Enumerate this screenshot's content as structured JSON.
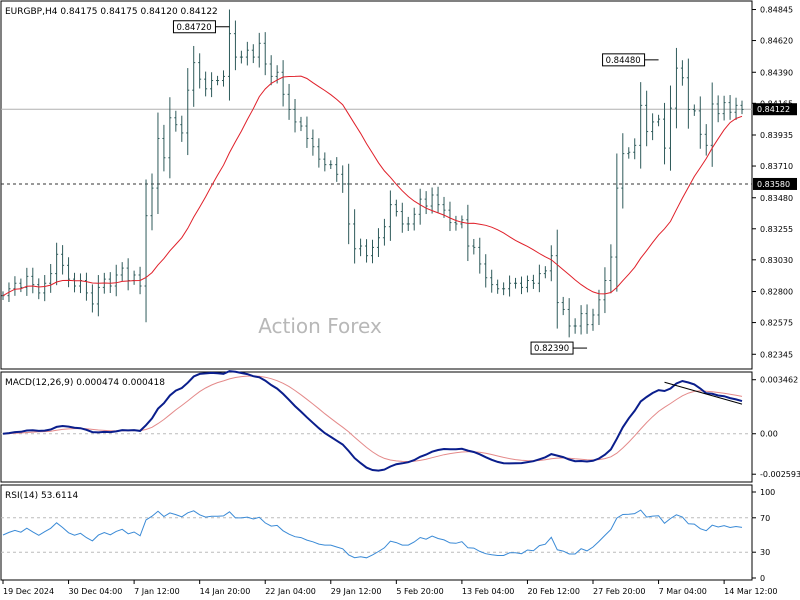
{
  "chart_data": {
    "type": "line",
    "symbol_header": "EURGBP,H4  0.84175 0.84175 0.84120 0.84122",
    "watermark": "Action Forex",
    "colors": {
      "bars": "#2e5a5a",
      "sma": "#e0202a",
      "macd": "#0a1e8c",
      "signal": "#e48a8a",
      "rsi": "#3a8ad6",
      "trendline": "#000000",
      "frame": "#000000"
    },
    "price_panel": {
      "ylim": [
        0.8226,
        0.84885
      ],
      "y_ticks": [
        "0.84845",
        "0.84620",
        "0.84390",
        "0.84165",
        "0.83935",
        "0.83710",
        "0.83480",
        "0.83255",
        "0.83030",
        "0.82800",
        "0.82575",
        "0.82345"
      ],
      "current_price_label": "0.84122",
      "current_price": 0.84122,
      "horizontal_level_label": "0.83580",
      "horizontal_level": 0.8358,
      "annotations": [
        {
          "text": "0.84720",
          "x": 38,
          "y": 0.8472
        },
        {
          "text": "0.84480",
          "x": 110,
          "y": 0.8448
        },
        {
          "text": "0.82390",
          "x": 98,
          "y": 0.8239
        }
      ],
      "close": [
        0.8277,
        0.8282,
        0.8286,
        0.8283,
        0.8291,
        0.8285,
        0.8279,
        0.8286,
        0.8293,
        0.8307,
        0.8299,
        0.8289,
        0.8284,
        0.8288,
        0.8279,
        0.8271,
        0.8283,
        0.8289,
        0.8284,
        0.8292,
        0.8297,
        0.8288,
        0.8292,
        0.8284,
        0.8335,
        0.8355,
        0.8391,
        0.8377,
        0.8406,
        0.8401,
        0.8395,
        0.8426,
        0.8446,
        0.8434,
        0.8427,
        0.8433,
        0.8433,
        0.8436,
        0.8467,
        0.845,
        0.845,
        0.8455,
        0.845,
        0.846,
        0.8445,
        0.8436,
        0.8439,
        0.8423,
        0.8412,
        0.8403,
        0.84,
        0.8391,
        0.8385,
        0.8376,
        0.8372,
        0.8372,
        0.8365,
        0.8358,
        0.8329,
        0.8311,
        0.8313,
        0.8306,
        0.8312,
        0.8319,
        0.8327,
        0.8343,
        0.8338,
        0.8329,
        0.8329,
        0.8336,
        0.8347,
        0.8342,
        0.835,
        0.8343,
        0.8339,
        0.833,
        0.8329,
        0.8332,
        0.8313,
        0.8312,
        0.83,
        0.829,
        0.8285,
        0.8282,
        0.8282,
        0.8286,
        0.8286,
        0.8283,
        0.8288,
        0.8286,
        0.8293,
        0.8295,
        0.8306,
        0.8272,
        0.8267,
        0.8255,
        0.8255,
        0.8264,
        0.8256,
        0.8263,
        0.8274,
        0.8288,
        0.8305,
        0.8355,
        0.838,
        0.8381,
        0.8386,
        0.8415,
        0.8396,
        0.8403,
        0.8405,
        0.8384,
        0.8413,
        0.8442,
        0.8435,
        0.8412,
        0.8411,
        0.8394,
        0.8386,
        0.8416,
        0.8409,
        0.8417,
        0.841,
        0.8415,
        0.8412
      ],
      "sma_label": "SMA"
    },
    "macd_panel": {
      "label": "MACD(12,26,9) 0.000474 0.000418",
      "ylim": [
        -0.0029,
        0.0037
      ],
      "y_ticks": [
        "0.003462",
        "0.00",
        "-0.002593"
      ],
      "trendline": {
        "from": [
          111,
          0.0033
        ],
        "to": [
          124,
          0.0019
        ]
      },
      "series": [
        {
          "name": "MACD"
        },
        {
          "name": "Signal"
        }
      ]
    },
    "rsi_panel": {
      "label": "RSI(14) 53.6114",
      "ylim": [
        0,
        100
      ],
      "y_ticks": [
        "100",
        "70",
        "30",
        "0"
      ],
      "levels": [
        70,
        30
      ]
    },
    "x_ticks": [
      {
        "label": "19 Dec 2024",
        "x": 0
      },
      {
        "label": "30 Dec 04:00",
        "x": 11
      },
      {
        "label": "7 Jan 12:00",
        "x": 22
      },
      {
        "label": "14 Jan 20:00",
        "x": 33
      },
      {
        "label": "22 Jan 04:00",
        "x": 44
      },
      {
        "label": "29 Jan 12:00",
        "x": 55
      },
      {
        "label": "5 Feb 20:00",
        "x": 66
      },
      {
        "label": "13 Feb 04:00",
        "x": 77
      },
      {
        "label": "20 Feb 12:00",
        "x": 88
      },
      {
        "label": "27 Feb 20:00",
        "x": 99
      },
      {
        "label": "7 Mar 04:00",
        "x": 110
      },
      {
        "label": "14 Mar 12:00",
        "x": 121
      }
    ]
  }
}
